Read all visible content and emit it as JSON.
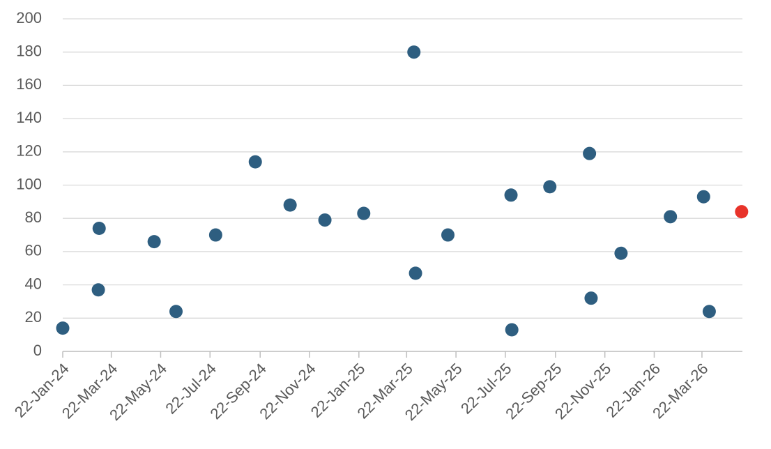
{
  "chart_data": {
    "type": "scatter",
    "series": [
      {
        "color": "#2e5e80",
        "x": [
          "2024-01-22",
          "2024-03-06",
          "2024-03-07",
          "2024-05-14",
          "2024-06-10",
          "2024-07-29",
          "2024-09-16",
          "2024-10-29",
          "2024-12-11",
          "2025-01-28",
          "2025-03-31",
          "2025-04-02",
          "2025-05-12",
          "2025-07-29",
          "2025-07-30",
          "2025-09-15",
          "2025-11-03",
          "2025-11-05",
          "2025-12-12",
          "2026-02-11",
          "2026-03-24",
          "2026-03-31"
        ],
        "values": [
          14,
          37,
          74,
          66,
          24,
          70,
          114,
          88,
          79,
          83,
          180,
          47,
          70,
          94,
          13,
          99,
          119,
          32,
          59,
          81,
          93,
          24
        ]
      },
      {
        "color": "#e8332a",
        "x": [
          "2026-05-10"
        ],
        "values": [
          84
        ]
      }
    ],
    "xlim": [
      "2024-01-22",
      "2026-05-11"
    ],
    "xticks": [
      {
        "value": "2024-01-22",
        "label": "22-Jan-24"
      },
      {
        "value": "2024-03-22",
        "label": "22-Mar-24"
      },
      {
        "value": "2024-05-22",
        "label": "22-May-24"
      },
      {
        "value": "2024-07-22",
        "label": "22-Jul-24"
      },
      {
        "value": "2024-09-22",
        "label": "22-Sep-24"
      },
      {
        "value": "2024-11-22",
        "label": "22-Nov-24"
      },
      {
        "value": "2025-01-22",
        "label": "22-Jan-25"
      },
      {
        "value": "2025-03-22",
        "label": "22-Mar-25"
      },
      {
        "value": "2025-05-22",
        "label": "22-May-25"
      },
      {
        "value": "2025-07-22",
        "label": "22-Jul-25"
      },
      {
        "value": "2025-09-22",
        "label": "22-Sep-25"
      },
      {
        "value": "2025-11-22",
        "label": "22-Nov-25"
      },
      {
        "value": "2026-01-22",
        "label": "22-Jan-26"
      },
      {
        "value": "2026-03-22",
        "label": "22-Mar-26"
      }
    ],
    "ylim": [
      0,
      200
    ],
    "yticks": [
      0,
      20,
      40,
      60,
      80,
      100,
      120,
      140,
      160,
      180,
      200
    ],
    "grid": true
  }
}
